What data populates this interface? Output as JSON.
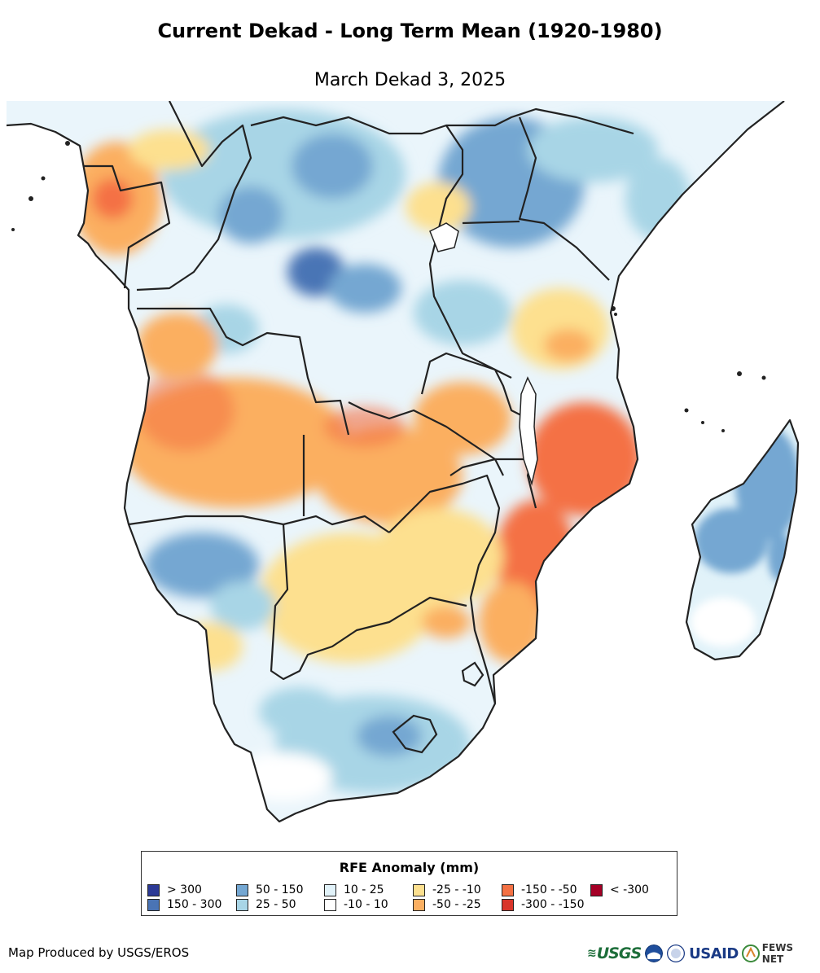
{
  "title": "Current Dekad - Long Term Mean (1920-1980)",
  "subtitle": "March Dekad 3, 2025",
  "legend": {
    "title": "RFE Anomaly (mm)",
    "items": [
      {
        "label": "> 300",
        "color": "#2c3a96"
      },
      {
        "label": "150 - 300",
        "color": "#4a74b5"
      },
      {
        "label": "50 - 150",
        "color": "#74a7d2"
      },
      {
        "label": "25 - 50",
        "color": "#a8d5e6"
      },
      {
        "label": "10 - 25",
        "color": "#e1f2f9"
      },
      {
        "label": "-10 - 10",
        "color": "#ffffff"
      },
      {
        "label": "-25 - -10",
        "color": "#fde08f"
      },
      {
        "label": "-50 - -25",
        "color": "#fbaf61"
      },
      {
        "label": "-150 - -50",
        "color": "#f47144"
      },
      {
        "label": "-300 - -150",
        "color": "#d8352a"
      },
      {
        "label": "< -300",
        "color": "#a50026"
      }
    ]
  },
  "credit": "Map Produced by USGS/EROS",
  "logos": {
    "usgs": "USGS",
    "usaid": "USAID",
    "fews": "FEWS NET"
  },
  "colors": {
    "border": "#222222"
  }
}
